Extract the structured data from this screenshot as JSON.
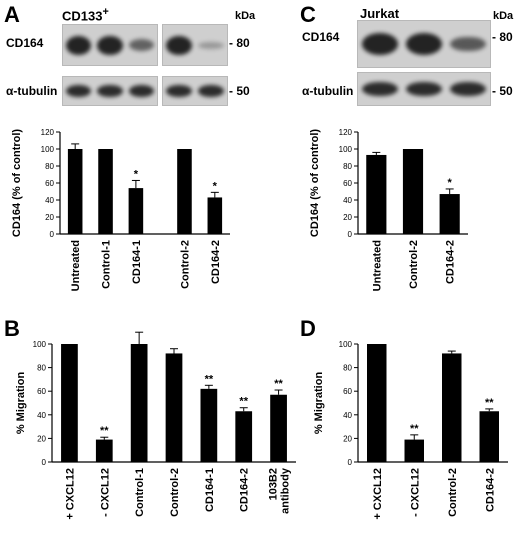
{
  "panels": {
    "A": {
      "letter": "A",
      "title_cell": "CD133",
      "title_sup": "+",
      "kda": "kDa",
      "blot_rows": [
        {
          "label": "CD164",
          "mw": "- 80",
          "lanes_left": [
            0.95,
            0.95,
            0.6
          ],
          "lanes_right": [
            0.95,
            0.3
          ]
        },
        {
          "label": "α-tubulin",
          "mw": "- 50",
          "lanes_left": [
            0.9,
            0.9,
            0.9
          ],
          "lanes_right": [
            0.9,
            0.9
          ]
        }
      ]
    },
    "C": {
      "letter": "C",
      "title_cell": "Jurkat",
      "kda": "kDa",
      "blot_rows": [
        {
          "label": "CD164",
          "mw": "- 80",
          "lanes": [
            0.95,
            0.95,
            0.65
          ]
        },
        {
          "label": "α-tubulin",
          "mw": "- 50",
          "lanes": [
            0.9,
            0.9,
            0.9
          ]
        }
      ]
    },
    "B": {
      "letter": "B"
    },
    "D": {
      "letter": "D"
    }
  },
  "chart_data": [
    {
      "panel": "A",
      "type": "bar",
      "categories": [
        "Untreated",
        "Control-1",
        "CD164-1",
        "Control-2",
        "CD164-2"
      ],
      "values": [
        100,
        100,
        54,
        100,
        43
      ],
      "errors": [
        6,
        0,
        9,
        0,
        6
      ],
      "annotations": [
        "",
        "",
        "*",
        "",
        "*"
      ],
      "gap_after_index": 2,
      "ylabel": "CD164 (% of control)",
      "ylim": [
        0,
        120
      ],
      "yticks": [
        0,
        20,
        40,
        60,
        80,
        100,
        120
      ],
      "color": "#000000"
    },
    {
      "panel": "C",
      "type": "bar",
      "categories": [
        "Untreated",
        "Control-2",
        "CD164-2"
      ],
      "values": [
        93,
        100,
        47
      ],
      "errors": [
        3,
        0,
        6
      ],
      "annotations": [
        "",
        "",
        "*"
      ],
      "ylabel": "CD164 (% of control)",
      "ylim": [
        0,
        120
      ],
      "yticks": [
        0,
        20,
        40,
        60,
        80,
        100,
        120
      ],
      "color": "#000000"
    },
    {
      "panel": "B",
      "type": "bar",
      "categories": [
        "+ CXCL12",
        "- CXCL12",
        "Control-1",
        "Control-2",
        "CD164-1",
        "CD164-2",
        "103B2 antibody"
      ],
      "values": [
        100,
        19,
        100,
        92,
        62,
        43,
        57
      ],
      "errors": [
        0,
        2,
        10,
        4,
        3,
        3,
        4
      ],
      "annotations": [
        "",
        "**",
        "",
        "",
        "**",
        "**",
        "**"
      ],
      "ylabel": "% Migration",
      "ylim": [
        0,
        100
      ],
      "yticks": [
        0,
        20,
        40,
        60,
        80,
        100
      ],
      "color": "#000000"
    },
    {
      "panel": "D",
      "type": "bar",
      "categories": [
        "+ CXCL12",
        "- CXCL12",
        "Control-2",
        "CD164-2"
      ],
      "values": [
        100,
        19,
        92,
        43
      ],
      "errors": [
        0,
        4,
        2,
        2
      ],
      "annotations": [
        "",
        "**",
        "",
        "**"
      ],
      "ylabel": "% Migration",
      "ylim": [
        0,
        100
      ],
      "yticks": [
        0,
        20,
        40,
        60,
        80,
        100
      ],
      "color": "#000000"
    }
  ]
}
